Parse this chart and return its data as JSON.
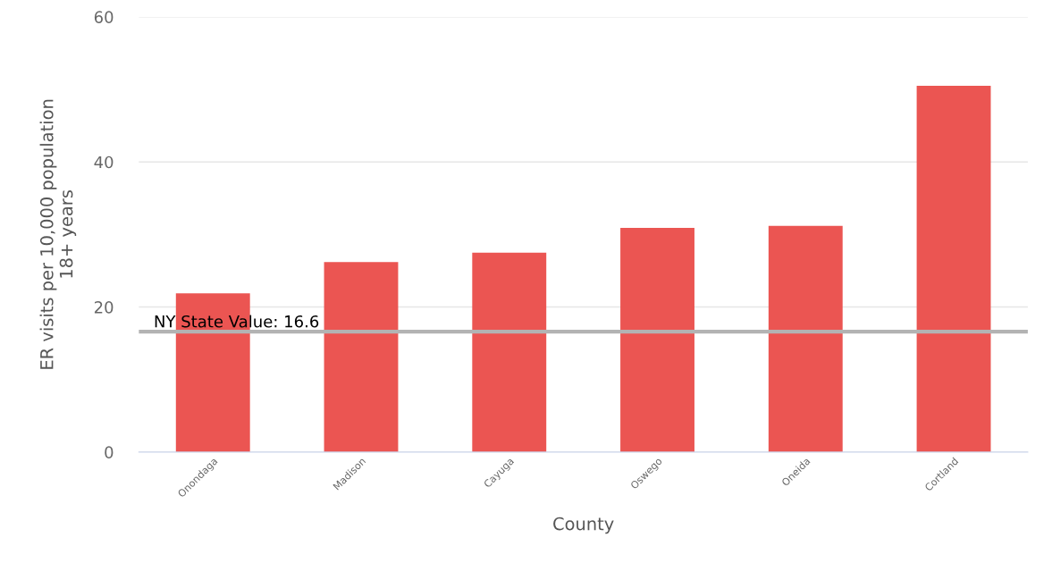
{
  "chart_data": {
    "type": "bar",
    "categories": [
      "Onondaga",
      "Madison",
      "Cayuga",
      "Oswego",
      "Oneida",
      "Cortland"
    ],
    "values": [
      21.9,
      26.2,
      27.5,
      30.9,
      31.2,
      50.5
    ],
    "color": "#eb5552",
    "xlabel": "County",
    "ylabel": "ER visits per 10,000 population\n18+ years",
    "ylim": [
      0,
      60
    ],
    "yticks": [
      0,
      20,
      40,
      60
    ],
    "grid": "y",
    "ref_lines": [
      {
        "axis": "y",
        "value": 16.6,
        "label": "NY State Value: 16.6",
        "color": "#b3b3b3"
      }
    ]
  }
}
